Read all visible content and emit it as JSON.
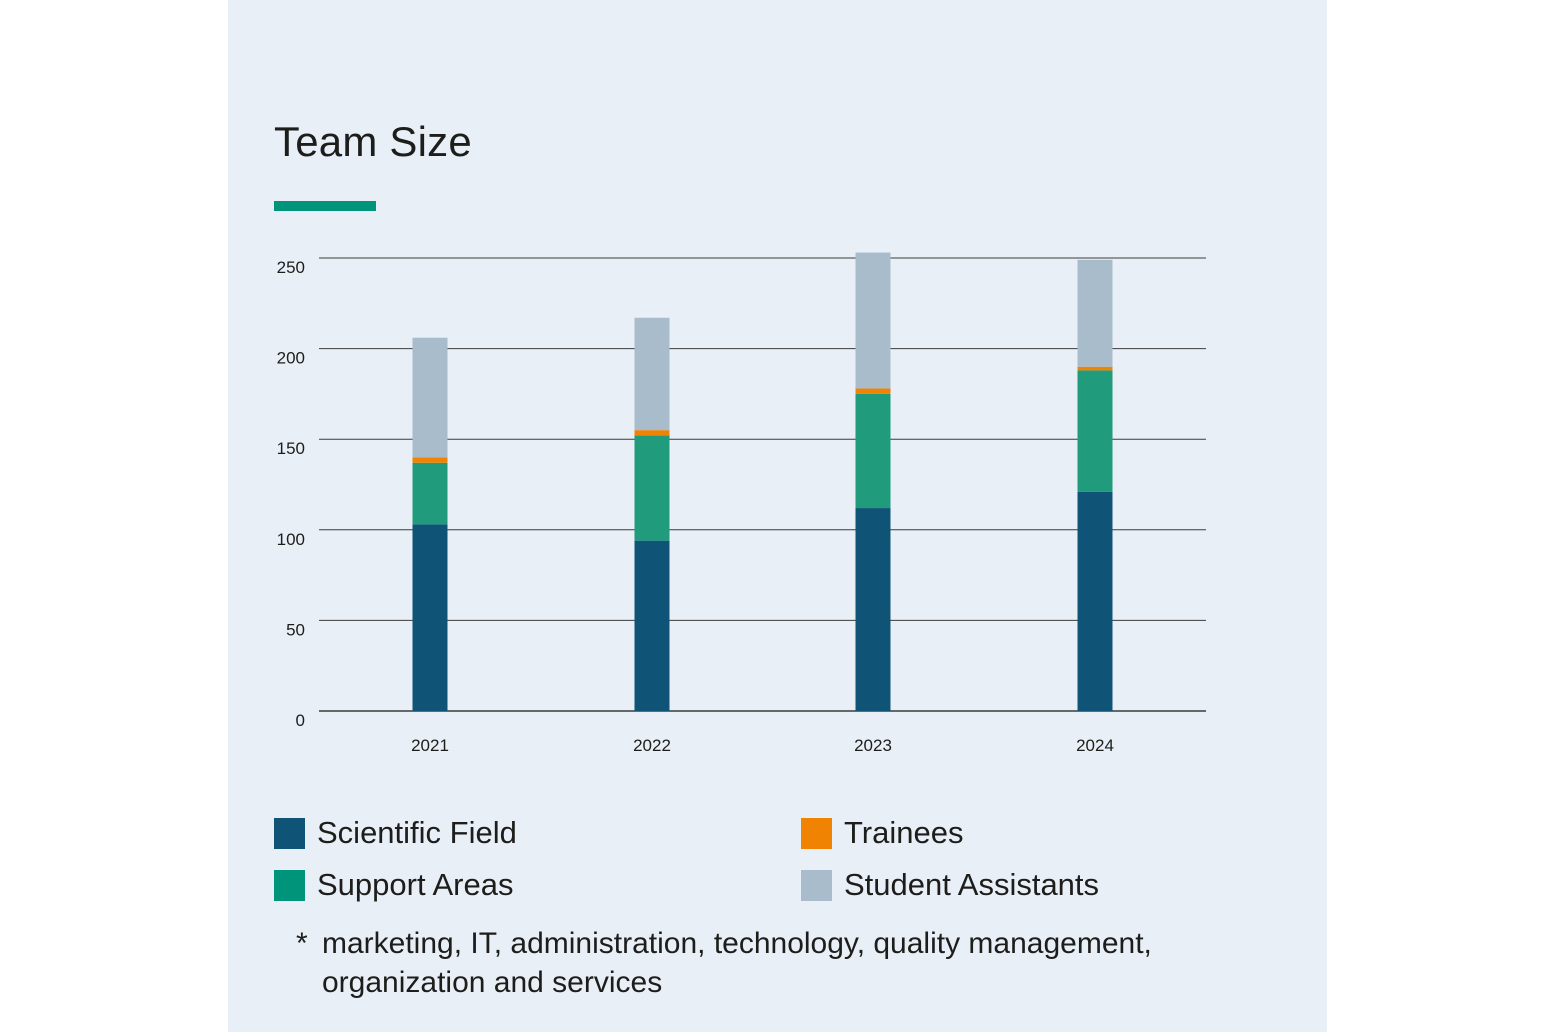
{
  "colors": {
    "panel_bg": "#e8eff6",
    "accent_bar": "#00957a",
    "gridline": "#3c3c3c",
    "text": "#1d1d1b"
  },
  "chart_data": {
    "type": "bar",
    "stacked": true,
    "title": "Team Size",
    "xlabel": "",
    "ylabel": "",
    "ylim": [
      0,
      250
    ],
    "yticks": [
      0,
      50,
      100,
      150,
      200,
      250
    ],
    "grid": true,
    "legend_position": "bottom",
    "categories": [
      "2021",
      "2022",
      "2023",
      "2024"
    ],
    "series": [
      {
        "name": "Scientific Field",
        "color": "#0f5477",
        "values": [
          103,
          94,
          112,
          121
        ]
      },
      {
        "name": "Support Areas",
        "color": "#209b7b",
        "values": [
          34,
          58,
          63,
          67
        ]
      },
      {
        "name": "Trainees",
        "color": "#f08302",
        "values": [
          3,
          3,
          3,
          2
        ]
      },
      {
        "name": "Student Assistants",
        "color": "#a8bccb",
        "values": [
          66,
          62,
          75,
          59
        ]
      }
    ]
  },
  "legend": {
    "items": [
      {
        "label": "Scientific Field",
        "color": "#0f5477"
      },
      {
        "label": "Trainees",
        "color": "#f08302"
      },
      {
        "label": "Support Areas",
        "color": "#00957a"
      },
      {
        "label": "Student Assistants",
        "color": "#a8bccb"
      }
    ]
  },
  "footnote": {
    "marker": "*",
    "text": "marketing, IT, administration, technology, quality management, organization and services"
  }
}
